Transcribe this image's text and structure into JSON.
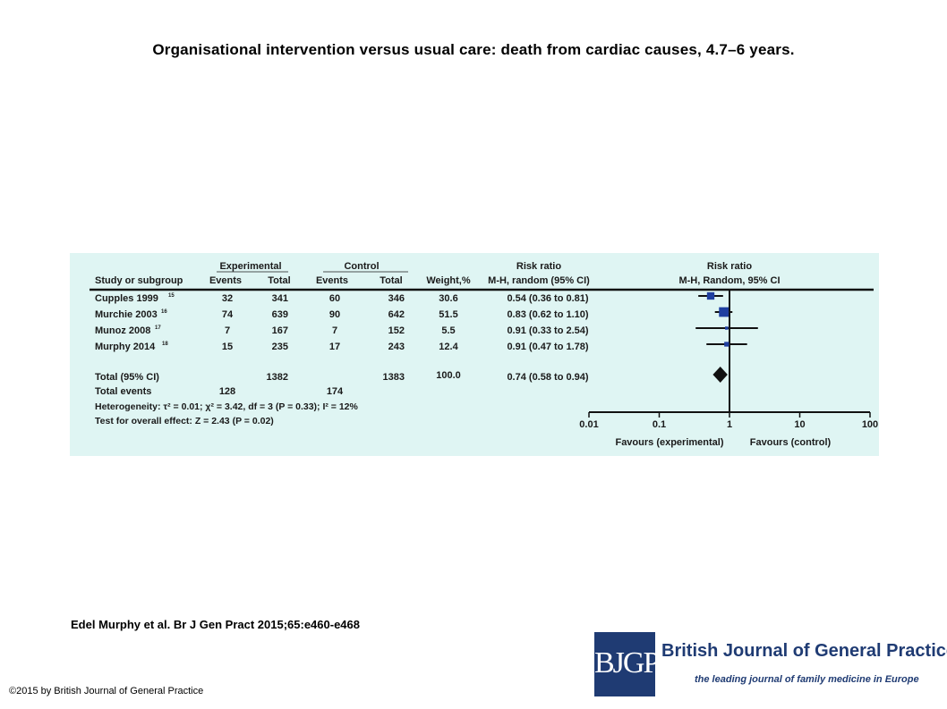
{
  "title": "Organisational intervention versus usual care: death from cardiac causes, 4.7–6 years.",
  "citation": "Edel Murphy et al. Br J Gen Pract 2015;65:e460-e468",
  "copyright": "©2015 by British Journal of General Practice",
  "logo": {
    "mark": "BJGP",
    "name": "British Journal of General Practice",
    "tagline": "the leading journal of family medicine in Europe",
    "color": "#1f3b73"
  },
  "colors": {
    "panel": "#dff5f3",
    "square": "#1f3fa0",
    "line": "#111111"
  },
  "table": {
    "group_headers": {
      "experimental": "Experimental",
      "control": "Control",
      "ratio": "Risk ratio",
      "plot": "Risk ratio"
    },
    "col_headers": {
      "study": "Study or subgroup",
      "exp_events": "Events",
      "exp_total": "Total",
      "ctl_events": "Events",
      "ctl_total": "Total",
      "weight": "Weight,%",
      "ratio_method": "M-H, random (95% CI)",
      "plot_method": "M-H, Random, 95% CI"
    },
    "total": {
      "label": "Total (95% CI)",
      "exp_total": "1382",
      "ctl_total": "1383",
      "weight": "100.0",
      "ci": "0.74 (0.58 to 0.94)"
    },
    "events": {
      "label": "Total events",
      "exp_events": "128",
      "ctl_events": "174"
    },
    "heterogeneity": "Heterogeneity: τ² = 0.01; χ² = 3.42, df = 3 (P = 0.33); I² = 12%",
    "overall": "Test for overall effect: Z = 2.43 (P = 0.02)",
    "favours_left": "Favours (experimental)",
    "favours_right": "Favours (control)"
  },
  "chart_data": {
    "type": "forest",
    "x_scale": "log",
    "xlim": [
      0.01,
      100
    ],
    "x_ticks": [
      "0.01",
      "0.1",
      "1",
      "10",
      "100"
    ],
    "studies": [
      {
        "name": "Cupples 1999",
        "ref": "15",
        "exp_events": "32",
        "exp_total": "341",
        "ctl_events": "60",
        "ctl_total": "346",
        "weight": "30.6",
        "ci_text": "0.54 (0.36 to 0.81)",
        "rr": 0.54,
        "lo": 0.36,
        "hi": 0.81,
        "w": 30.6
      },
      {
        "name": "Murchie 2003",
        "ref": "16",
        "exp_events": "74",
        "exp_total": "639",
        "ctl_events": "90",
        "ctl_total": "642",
        "weight": "51.5",
        "ci_text": "0.83 (0.62 to 1.10)",
        "rr": 0.83,
        "lo": 0.62,
        "hi": 1.1,
        "w": 51.5
      },
      {
        "name": "Munoz 2008",
        "ref": "17",
        "exp_events": "7",
        "exp_total": "167",
        "ctl_events": "7",
        "ctl_total": "152",
        "weight": "5.5",
        "ci_text": "0.91 (0.33 to 2.54)",
        "rr": 0.91,
        "lo": 0.33,
        "hi": 2.54,
        "w": 5.5
      },
      {
        "name": "Murphy 2014",
        "ref": "18",
        "exp_events": "15",
        "exp_total": "235",
        "ctl_events": "17",
        "ctl_total": "243",
        "weight": "12.4",
        "ci_text": "0.91 (0.47 to 1.78)",
        "rr": 0.91,
        "lo": 0.47,
        "hi": 1.78,
        "w": 12.4
      }
    ],
    "pooled": {
      "rr": 0.74,
      "lo": 0.58,
      "hi": 0.94
    }
  }
}
